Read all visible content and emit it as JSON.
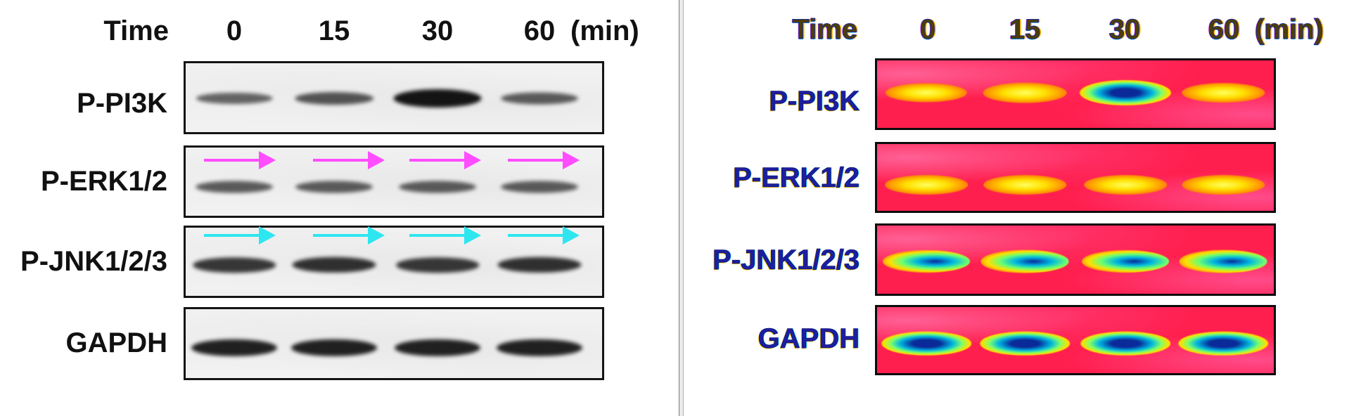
{
  "header": {
    "time_label": "Time",
    "timepoints": [
      "0",
      "15",
      "30",
      "60"
    ],
    "unit": "(min)"
  },
  "rows": [
    {
      "label": "P-PI3K",
      "intensities": [
        0.45,
        0.55,
        1.0,
        0.5
      ]
    },
    {
      "label": "P-ERK1/2",
      "intensities": [
        0.5,
        0.5,
        0.5,
        0.5
      ]
    },
    {
      "label": "P-JNK1/2/3",
      "intensities": [
        0.75,
        0.8,
        0.75,
        0.8
      ]
    },
    {
      "label": "GAPDH",
      "intensities": [
        0.9,
        0.9,
        0.9,
        0.9
      ]
    }
  ],
  "arrows": [
    {
      "row": "P-ERK1/2",
      "color": "#ff4dff"
    },
    {
      "row": "P-JNK1/2/3",
      "color": "#2ee6f0"
    }
  ],
  "heatmap_colors": {
    "background": "#ff1f4e",
    "low": "#ff5a20",
    "mid": "#ffe000",
    "high": "#00b8e0",
    "peak": "#0a2a9a"
  }
}
